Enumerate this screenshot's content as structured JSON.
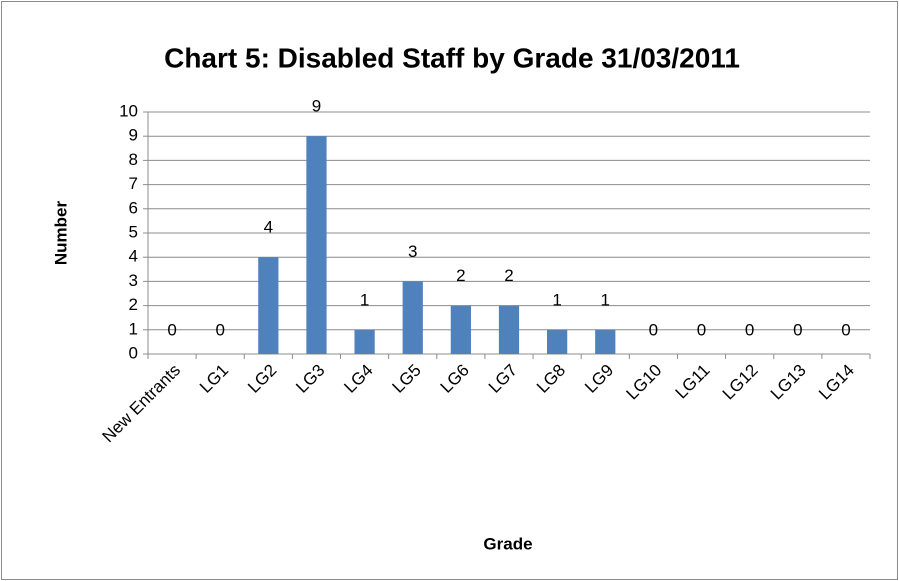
{
  "chart_data": {
    "type": "bar",
    "title": "Chart 5: Disabled Staff by Grade 31/03/2011",
    "x_label": "Grade",
    "y_label": "Number",
    "categories": [
      "New Entrants",
      "LG1",
      "LG2",
      "LG3",
      "LG4",
      "LG5",
      "LG6",
      "LG7",
      "LG8",
      "LG9",
      "LG10",
      "LG11",
      "LG12",
      "LG13",
      "LG14"
    ],
    "values": [
      0,
      0,
      4,
      9,
      1,
      3,
      2,
      2,
      1,
      1,
      0,
      0,
      0,
      0,
      0
    ],
    "color": "#4f81bd",
    "ylim": [
      0,
      10
    ],
    "yticks": [
      0,
      1,
      2,
      3,
      4,
      5,
      6,
      7,
      8,
      9,
      10
    ],
    "grid": true
  }
}
